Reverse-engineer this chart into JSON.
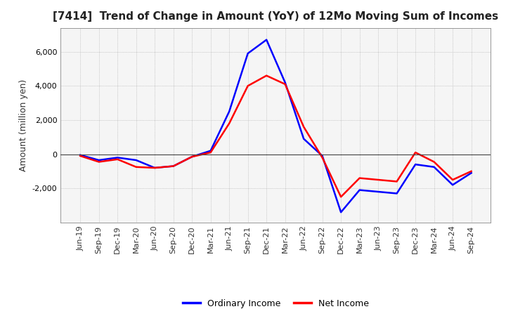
{
  "title": "[7414]  Trend of Change in Amount (YoY) of 12Mo Moving Sum of Incomes",
  "ylabel": "Amount (million yen)",
  "x_labels": [
    "Jun-19",
    "Sep-19",
    "Dec-19",
    "Mar-20",
    "Jun-20",
    "Sep-20",
    "Dec-20",
    "Mar-21",
    "Jun-21",
    "Sep-21",
    "Dec-21",
    "Mar-22",
    "Jun-22",
    "Sep-22",
    "Dec-22",
    "Mar-23",
    "Jun-23",
    "Sep-23",
    "Dec-23",
    "Mar-24",
    "Jun-24",
    "Sep-24"
  ],
  "ordinary_income": [
    -50,
    -350,
    -200,
    -350,
    -800,
    -700,
    -150,
    200,
    2500,
    5900,
    6700,
    4200,
    900,
    -100,
    -3400,
    -2100,
    -2200,
    -2300,
    -600,
    -750,
    -1800,
    -1100
  ],
  "net_income": [
    -100,
    -450,
    -300,
    -750,
    -800,
    -700,
    -150,
    100,
    1800,
    4000,
    4600,
    4100,
    1600,
    -200,
    -2500,
    -1400,
    -1500,
    -1600,
    100,
    -450,
    -1500,
    -1000
  ],
  "ordinary_income_color": "#0000FF",
  "net_income_color": "#FF0000",
  "background_color": "#FFFFFF",
  "plot_bg_color": "#F5F5F5",
  "grid_color": "#888888",
  "ylim": [
    -4000,
    7400
  ],
  "yticks": [
    -2000,
    0,
    2000,
    4000,
    6000
  ],
  "legend_labels": [
    "Ordinary Income",
    "Net Income"
  ],
  "line_width": 1.8,
  "title_fontsize": 11,
  "tick_fontsize": 8,
  "ylabel_fontsize": 9
}
